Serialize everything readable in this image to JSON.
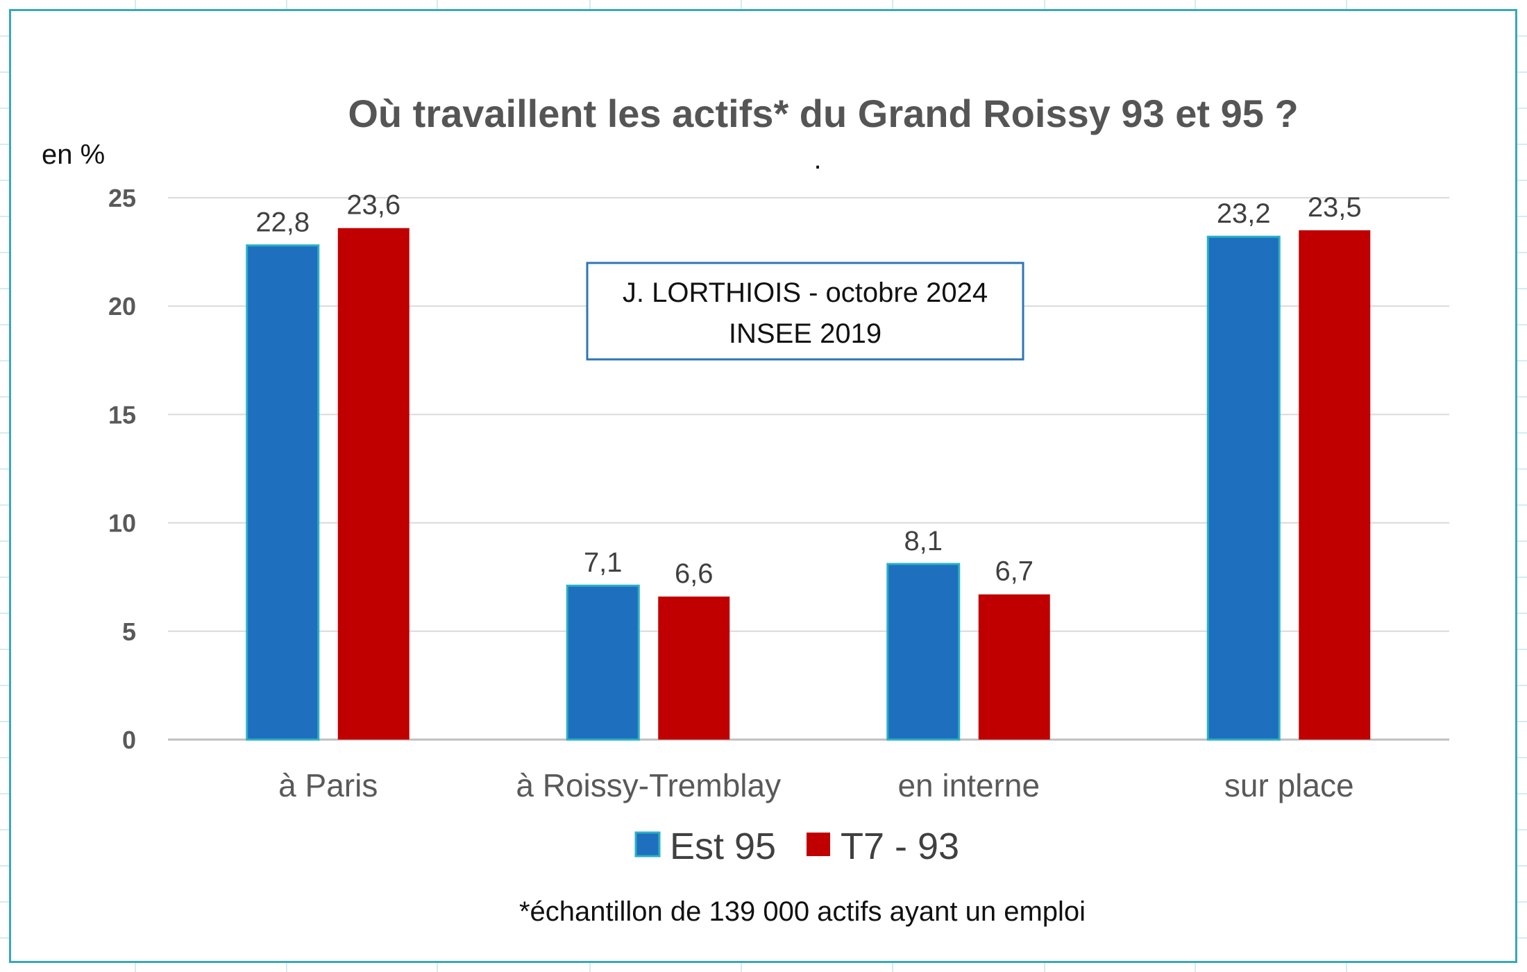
{
  "chart_data": {
    "type": "bar",
    "title": "Où travaillent les actifs* du Grand Roissy 93 et 95 ?",
    "subtitle": ".",
    "ylabel": "en %",
    "ylim": [
      0,
      25
    ],
    "yticks": [
      0,
      5,
      10,
      15,
      20,
      25
    ],
    "grid": true,
    "categories": [
      "à Paris",
      "à Roissy-Tremblay",
      "en interne",
      "sur place"
    ],
    "series": [
      {
        "name": "Est 95",
        "values": [
          22.8,
          7.1,
          8.1,
          23.2
        ],
        "labels": [
          "22,8",
          "7,1",
          "8,1",
          "23,2"
        ],
        "color": "#1e6fbd"
      },
      {
        "name": "T7 - 93",
        "values": [
          23.6,
          6.6,
          6.7,
          23.5
        ],
        "labels": [
          "23,6",
          "6,6",
          "6,7",
          "23,5"
        ],
        "color": "#c00000"
      }
    ],
    "annotation": [
      "J. LORTHIOIS - octobre 2024",
      "INSEE 2019"
    ],
    "footnote": "*échantillon de 139 000 actifs ayant un emploi",
    "legend_position": "bottom"
  },
  "colors": {
    "frame": "#38a8b8",
    "grid": "#d9d9d9",
    "sheet_grid": "#d4ecf0",
    "annotation_border": "#2e75b6",
    "bar_edge": "#2ab0c8"
  }
}
